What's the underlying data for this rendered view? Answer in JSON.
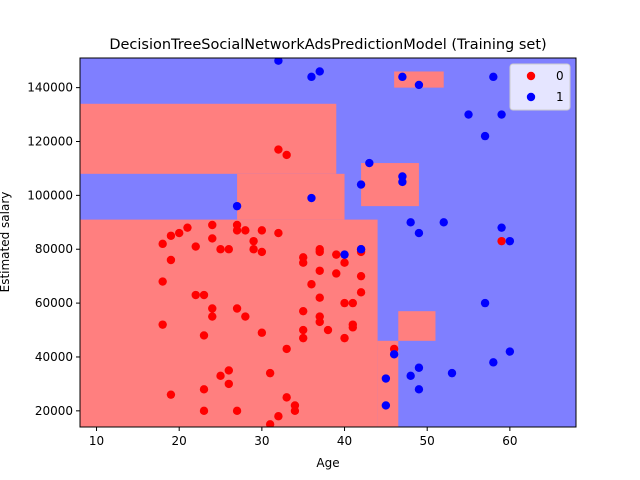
{
  "chart_data": {
    "type": "scatter",
    "title": "DecisionTreeSocialNetworkAdsPredictionModel (Training set)",
    "xlabel": "Age",
    "ylabel": "Estimated salary",
    "xlim": [
      8,
      68
    ],
    "ylim": [
      14000,
      151000
    ],
    "xticks": [
      10,
      20,
      30,
      40,
      50,
      60
    ],
    "yticks": [
      20000,
      40000,
      60000,
      80000,
      100000,
      120000,
      140000
    ],
    "grid": false,
    "legend_position": "top-right",
    "colors": {
      "class0": "#ff0000",
      "class1": "#0000ff",
      "region0": "#ff7f7f",
      "region1": "#7f7fff"
    },
    "regions": {
      "class0": [
        {
          "x": [
            8,
            44
          ],
          "y": [
            14000,
            91000
          ]
        },
        {
          "x": [
            8,
            39
          ],
          "y": [
            108000,
            134000
          ]
        },
        {
          "x": [
            27,
            40
          ],
          "y": [
            91000,
            108000
          ]
        },
        {
          "x": [
            44,
            46.5
          ],
          "y": [
            14000,
            46000
          ]
        },
        {
          "x": [
            46.5,
            51
          ],
          "y": [
            46000,
            57000
          ]
        },
        {
          "x": [
            42,
            49
          ],
          "y": [
            96000,
            112000
          ]
        },
        {
          "x": [
            46,
            52
          ],
          "y": [
            140000,
            146000
          ]
        }
      ]
    },
    "series": [
      {
        "name": "0",
        "points": [
          [
            18,
            82000
          ],
          [
            18,
            68000
          ],
          [
            18,
            52000
          ],
          [
            19,
            76000
          ],
          [
            19,
            85000
          ],
          [
            19,
            26000
          ],
          [
            20,
            86000
          ],
          [
            21,
            88000
          ],
          [
            22,
            81000
          ],
          [
            22,
            63000
          ],
          [
            23,
            63000
          ],
          [
            23,
            48000
          ],
          [
            23,
            28000
          ],
          [
            23,
            20000
          ],
          [
            24,
            89000
          ],
          [
            24,
            84000
          ],
          [
            24,
            58000
          ],
          [
            24,
            55000
          ],
          [
            25,
            80000
          ],
          [
            25,
            33000
          ],
          [
            26,
            80000
          ],
          [
            26,
            35000
          ],
          [
            26,
            30000
          ],
          [
            27,
            89000
          ],
          [
            27,
            87000
          ],
          [
            27,
            58000
          ],
          [
            27,
            20000
          ],
          [
            28,
            87000
          ],
          [
            28,
            55000
          ],
          [
            29,
            83000
          ],
          [
            29,
            80000
          ],
          [
            30,
            87000
          ],
          [
            30,
            79000
          ],
          [
            30,
            49000
          ],
          [
            31,
            34000
          ],
          [
            31,
            15000
          ],
          [
            32,
            117000
          ],
          [
            32,
            86000
          ],
          [
            32,
            18000
          ],
          [
            33,
            115000
          ],
          [
            33,
            43000
          ],
          [
            33,
            25000
          ],
          [
            34,
            22000
          ],
          [
            34,
            20000
          ],
          [
            35,
            77000
          ],
          [
            35,
            75000
          ],
          [
            35,
            57000
          ],
          [
            35,
            50000
          ],
          [
            35,
            47000
          ],
          [
            36,
            67000
          ],
          [
            37,
            80000
          ],
          [
            37,
            79000
          ],
          [
            37,
            72000
          ],
          [
            37,
            62000
          ],
          [
            37,
            55000
          ],
          [
            37,
            53000
          ],
          [
            38,
            50000
          ],
          [
            39,
            78000
          ],
          [
            39,
            71000
          ],
          [
            40,
            75000
          ],
          [
            40,
            60000
          ],
          [
            40,
            47000
          ],
          [
            41,
            60000
          ],
          [
            41,
            52000
          ],
          [
            41,
            51000
          ],
          [
            42,
            80000
          ],
          [
            42,
            79000
          ],
          [
            42,
            70000
          ],
          [
            42,
            64000
          ],
          [
            46,
            43000
          ],
          [
            59,
            83000
          ]
        ]
      },
      {
        "name": "1",
        "points": [
          [
            27,
            96000
          ],
          [
            32,
            150000
          ],
          [
            36,
            144000
          ],
          [
            37,
            146000
          ],
          [
            36,
            99000
          ],
          [
            40,
            78000
          ],
          [
            42,
            104000
          ],
          [
            42,
            80000
          ],
          [
            43,
            112000
          ],
          [
            45,
            32000
          ],
          [
            45,
            22000
          ],
          [
            46,
            41000
          ],
          [
            47,
            144000
          ],
          [
            47,
            107000
          ],
          [
            47,
            105000
          ],
          [
            48,
            90000
          ],
          [
            48,
            33000
          ],
          [
            49,
            141000
          ],
          [
            49,
            86000
          ],
          [
            49,
            36000
          ],
          [
            49,
            28000
          ],
          [
            52,
            90000
          ],
          [
            53,
            34000
          ],
          [
            55,
            130000
          ],
          [
            57,
            122000
          ],
          [
            57,
            60000
          ],
          [
            58,
            144000
          ],
          [
            58,
            38000
          ],
          [
            59,
            130000
          ],
          [
            59,
            88000
          ],
          [
            60,
            83000
          ],
          [
            60,
            42000
          ]
        ]
      }
    ]
  }
}
